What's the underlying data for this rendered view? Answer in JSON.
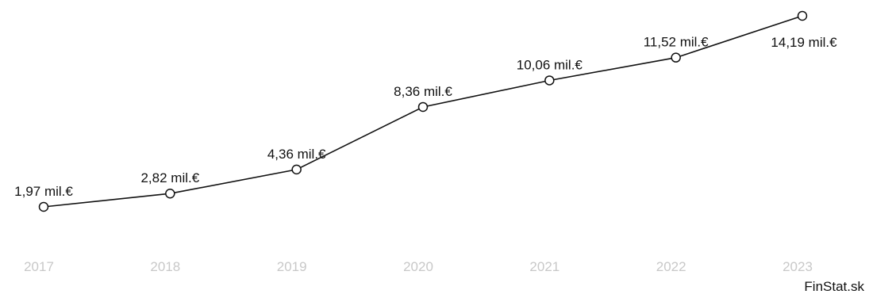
{
  "chart_data": {
    "type": "line",
    "x": [
      "2017",
      "2018",
      "2019",
      "2020",
      "2021",
      "2022",
      "2023"
    ],
    "series": [
      {
        "values": [
          1.97,
          2.82,
          4.36,
          8.36,
          10.06,
          11.52,
          14.19
        ],
        "labels": [
          "1,97 mil.€",
          "2,82 mil.€",
          "4,36 mil.€",
          "8,36 mil.€",
          "10,06 mil.€",
          "11,52 mil.€",
          "14,19 mil.€"
        ]
      }
    ],
    "ylim": [
      0,
      14.19
    ],
    "grid": false,
    "line_color": "#111111",
    "tick_color": "#c8c8c8"
  },
  "watermark": "FinStat.sk"
}
